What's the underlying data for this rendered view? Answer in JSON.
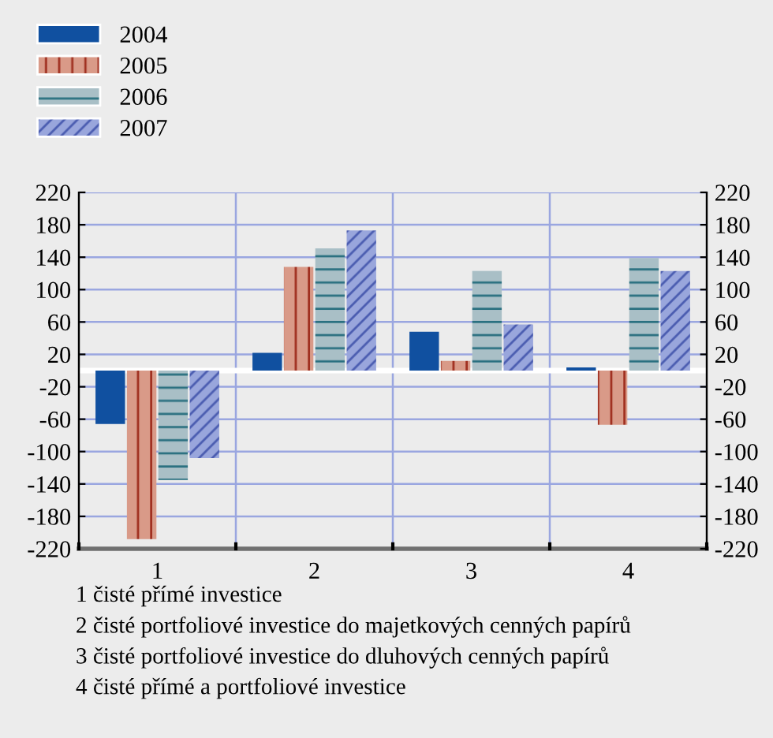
{
  "chart_data": {
    "type": "bar",
    "categories": [
      "1",
      "2",
      "3",
      "4"
    ],
    "series": [
      {
        "name": "2004",
        "color": "#1050a0",
        "values": [
          -66,
          22,
          48,
          4
        ]
      },
      {
        "name": "2005",
        "color": "#d99a88",
        "values": [
          -208,
          128,
          12,
          -67
        ]
      },
      {
        "name": "2006",
        "color": "#a9bfc6",
        "values": [
          -135,
          151,
          123,
          139
        ]
      },
      {
        "name": "2007",
        "color": "#99a6dc",
        "values": [
          -108,
          173,
          57,
          123
        ]
      }
    ],
    "ylim": [
      -220,
      220
    ],
    "yticks": [
      -220,
      -180,
      -140,
      -100,
      -60,
      -20,
      20,
      60,
      100,
      140,
      180,
      220
    ],
    "y2lim": [
      -220,
      220
    ],
    "y2ticks": [
      -220,
      -180,
      -140,
      -100,
      -60,
      -20,
      20,
      60,
      100,
      140,
      180,
      220
    ],
    "grid": true,
    "legend": "top left",
    "annotations": [
      "1 čisté přímé investice",
      "2 čisté portfoliové investice do majetkových cenných papírů",
      "3 čisté portfoliové investice do dluhových cenných papírů",
      "4 čisté přímé a portfoliové investice"
    ]
  }
}
